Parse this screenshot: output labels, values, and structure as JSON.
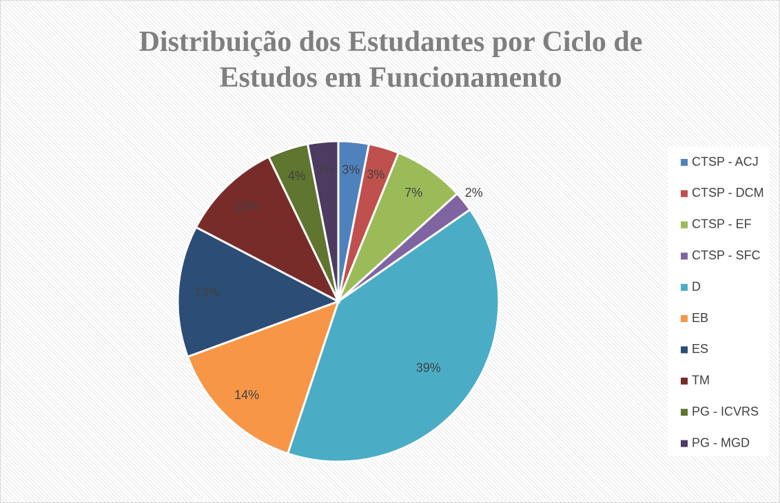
{
  "chart_data": {
    "type": "pie",
    "title": "Distribuição dos Estudantes por Ciclo de Estudos em Funcionamento",
    "categories": [
      "CTSP - ACJ",
      "CTSP - DCM",
      "CTSP - EF",
      "CTSP - SFC",
      "D",
      "EB",
      "ES",
      "TM",
      "PG - ICVRS",
      "PG - MGD"
    ],
    "values": [
      3,
      3,
      7,
      2,
      39,
      14,
      13,
      10,
      4,
      3
    ],
    "value_labels": [
      "3%",
      "3%",
      "7%",
      "2%",
      "39%",
      "14%",
      "13%",
      "10%",
      "4%",
      "3%"
    ],
    "colors": [
      "#4f81bd",
      "#c0504d",
      "#9bbb59",
      "#8064a2",
      "#4bacc6",
      "#f79646",
      "#2c4d75",
      "#772c2a",
      "#5f7530",
      "#4d3b62"
    ],
    "legend": "right"
  }
}
